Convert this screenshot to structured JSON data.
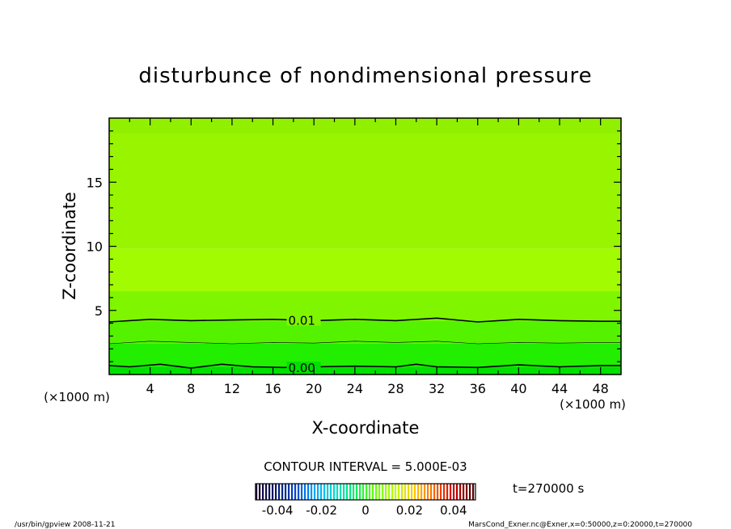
{
  "chart_data": {
    "type": "contour",
    "title": "disturbunce of nondimensional pressure",
    "xlabel": "X-coordinate",
    "ylabel": "Z-coordinate",
    "x_unit_left": "(×1000 m)",
    "x_unit_right": "(×1000 m)",
    "xlim": [
      0,
      50
    ],
    "ylim": [
      0,
      20
    ],
    "x_ticks": [
      4,
      8,
      12,
      16,
      20,
      24,
      28,
      32,
      36,
      40,
      44,
      48
    ],
    "x_tick_labels": [
      "4",
      "8",
      "12",
      "16",
      "20",
      "24",
      "28",
      "32",
      "36",
      "40",
      "44",
      "48"
    ],
    "y_ticks": [
      5,
      10,
      15
    ],
    "y_tick_labels": [
      "5",
      "10",
      "15"
    ],
    "fill_bands": [
      {
        "z0": 0,
        "z1": 0.6,
        "color": "#00e000"
      },
      {
        "z0": 0.6,
        "z1": 2.4,
        "color": "#22ee00"
      },
      {
        "z0": 2.4,
        "z1": 4.2,
        "color": "#55f200"
      },
      {
        "z0": 4.2,
        "z1": 6.5,
        "color": "#80f500"
      },
      {
        "z0": 6.5,
        "z1": 9.8,
        "color": "#a2fb00"
      },
      {
        "z0": 9.8,
        "z1": 18.8,
        "color": "#99f400"
      },
      {
        "z0": 18.8,
        "z1": 20,
        "color": "#90f000"
      }
    ],
    "contours": [
      {
        "value": 0.01,
        "label": "0.01",
        "label_x": 17.5,
        "points": [
          [
            0,
            4.1
          ],
          [
            4,
            4.3
          ],
          [
            8,
            4.2
          ],
          [
            12,
            4.25
          ],
          [
            16,
            4.3
          ],
          [
            20,
            4.2
          ],
          [
            24,
            4.3
          ],
          [
            28,
            4.2
          ],
          [
            32,
            4.4
          ],
          [
            36,
            4.1
          ],
          [
            40,
            4.3
          ],
          [
            44,
            4.2
          ],
          [
            48,
            4.15
          ],
          [
            50,
            4.15
          ]
        ]
      },
      {
        "value": 0.005,
        "label": "",
        "label_x": null,
        "points": [
          [
            0,
            2.4
          ],
          [
            4,
            2.6
          ],
          [
            8,
            2.5
          ],
          [
            12,
            2.4
          ],
          [
            16,
            2.5
          ],
          [
            20,
            2.45
          ],
          [
            24,
            2.6
          ],
          [
            28,
            2.5
          ],
          [
            32,
            2.6
          ],
          [
            36,
            2.4
          ],
          [
            40,
            2.5
          ],
          [
            44,
            2.45
          ],
          [
            48,
            2.5
          ],
          [
            50,
            2.5
          ]
        ]
      },
      {
        "value": 0.0,
        "label": "0.00",
        "label_x": 17.5,
        "points": [
          [
            0,
            0.7
          ],
          [
            2,
            0.6
          ],
          [
            5,
            0.8
          ],
          [
            8,
            0.5
          ],
          [
            11,
            0.8
          ],
          [
            14,
            0.6
          ],
          [
            17,
            0.55
          ],
          [
            20,
            0.6
          ],
          [
            24,
            0.65
          ],
          [
            28,
            0.6
          ],
          [
            30,
            0.8
          ],
          [
            32,
            0.6
          ],
          [
            36,
            0.55
          ],
          [
            40,
            0.75
          ],
          [
            44,
            0.6
          ],
          [
            48,
            0.7
          ],
          [
            50,
            0.7
          ]
        ]
      }
    ],
    "contour_interval_text": "CONTOUR INTERVAL = 5.000E-03",
    "time_text": "t=270000  s",
    "colorbar": {
      "min": -0.05,
      "max": 0.05,
      "tick_values": [
        -0.04,
        -0.02,
        0,
        0.02,
        0.04
      ],
      "tick_labels": [
        "-0.04",
        "-0.02",
        "0",
        "0.02",
        "0.04"
      ],
      "stops": [
        "#1a0033",
        "#001a66",
        "#0044cc",
        "#00aaff",
        "#00ddcc",
        "#00ee66",
        "#66ff00",
        "#bbff00",
        "#ffcc00",
        "#ff6600",
        "#cc0000",
        "#550000"
      ]
    },
    "footer_left": "/usr/bin/gpview  2008-11-21",
    "footer_right": "MarsCond_Exner.nc@Exner,x=0:50000,z=0:20000,t=270000"
  }
}
